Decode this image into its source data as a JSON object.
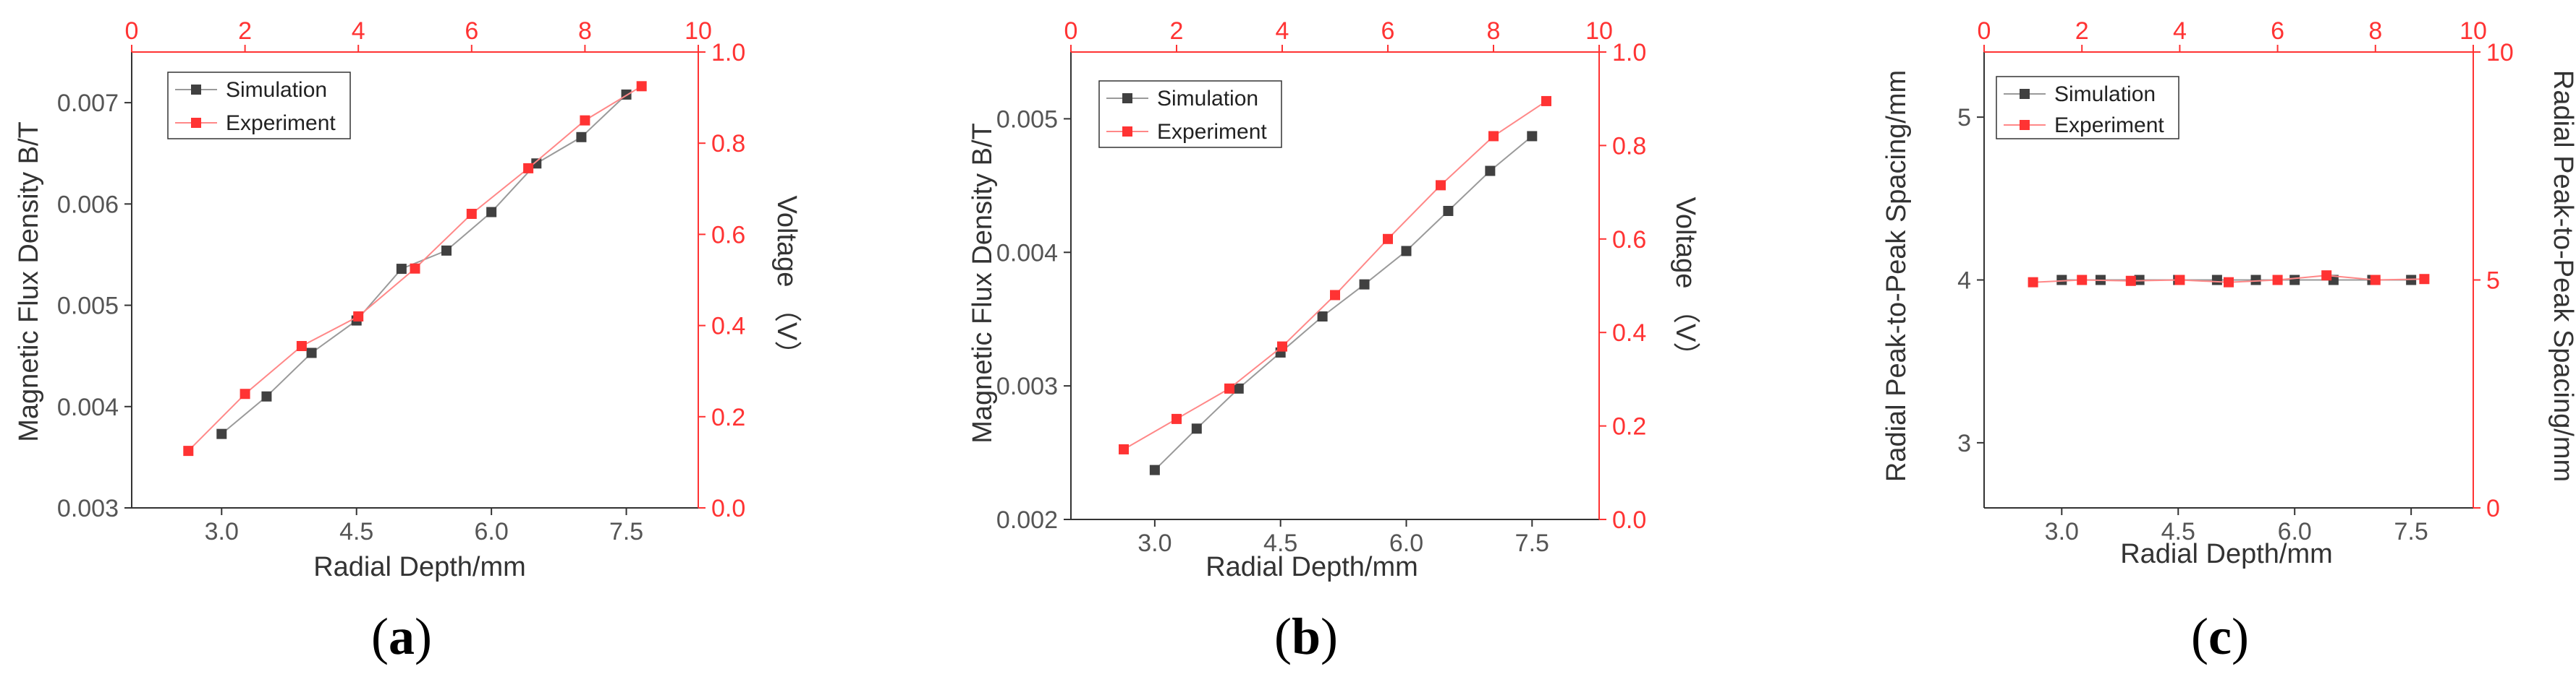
{
  "chart_data": [
    {
      "panel": "a",
      "panel_label": {
        "open": "(",
        "letter": "a",
        "close": ")"
      },
      "type": "line",
      "xlabel": "Radial Depth/mm",
      "ylabel": "Magnetic Flux Density B/T",
      "y2label": "Voltage （V）",
      "xlim": [
        2.0,
        8.3
      ],
      "ylim": [
        0.003,
        0.0075
      ],
      "x2lim": [
        0,
        10
      ],
      "y2lim": [
        0.0,
        1.0
      ],
      "xticks": [
        {
          "v": 3.0,
          "label": "3.0"
        },
        {
          "v": 4.5,
          "label": "4.5"
        },
        {
          "v": 6.0,
          "label": "6.0"
        },
        {
          "v": 7.5,
          "label": "7.5"
        }
      ],
      "yticks": [
        {
          "v": 0.003,
          "label": "0.003"
        },
        {
          "v": 0.004,
          "label": "0.004"
        },
        {
          "v": 0.005,
          "label": "0.005"
        },
        {
          "v": 0.006,
          "label": "0.006"
        },
        {
          "v": 0.007,
          "label": "0.007"
        }
      ],
      "x2ticks": [
        {
          "v": 0,
          "label": "0"
        },
        {
          "v": 2,
          "label": "2"
        },
        {
          "v": 4,
          "label": "4"
        },
        {
          "v": 6,
          "label": "6"
        },
        {
          "v": 8,
          "label": "8"
        },
        {
          "v": 10,
          "label": "10"
        }
      ],
      "y2ticks": [
        {
          "v": 0.0,
          "label": "0.0"
        },
        {
          "v": 0.2,
          "label": "0.2"
        },
        {
          "v": 0.4,
          "label": "0.4"
        },
        {
          "v": 0.6,
          "label": "0.6"
        },
        {
          "v": 0.8,
          "label": "0.8"
        },
        {
          "v": 1.0,
          "label": "1.0"
        }
      ],
      "legend": [
        "Simulation",
        "Experiment"
      ],
      "series": [
        {
          "name": "Simulation",
          "axes": "bottom-left",
          "color": "#404040",
          "x": [
            3.0,
            3.5,
            4.0,
            4.5,
            5.0,
            5.5,
            6.0,
            6.5,
            7.0,
            7.5
          ],
          "y": [
            0.00373,
            0.0041,
            0.00453,
            0.00485,
            0.00536,
            0.00554,
            0.00592,
            0.0064,
            0.00666,
            0.00708
          ]
        },
        {
          "name": "Experiment",
          "axes": "top-right",
          "color": "#ff3333",
          "x": [
            1,
            2,
            3,
            4,
            5,
            6,
            7,
            8,
            9
          ],
          "y": [
            0.125,
            0.25,
            0.355,
            0.42,
            0.525,
            0.645,
            0.745,
            0.85,
            0.925
          ]
        }
      ]
    },
    {
      "panel": "b",
      "panel_label": {
        "open": "(",
        "letter": "b",
        "close": ")"
      },
      "type": "line",
      "xlabel": "Radial Depth/mm",
      "ylabel": "Magnetic Flux Density B/T",
      "y2label": "Voltage （V）",
      "xlim": [
        2.0,
        8.3
      ],
      "ylim": [
        0.002,
        0.0055
      ],
      "x2lim": [
        0,
        10
      ],
      "y2lim": [
        0.0,
        1.0
      ],
      "xticks": [
        {
          "v": 3.0,
          "label": "3.0"
        },
        {
          "v": 4.5,
          "label": "4.5"
        },
        {
          "v": 6.0,
          "label": "6.0"
        },
        {
          "v": 7.5,
          "label": "7.5"
        }
      ],
      "yticks": [
        {
          "v": 0.002,
          "label": "0.002"
        },
        {
          "v": 0.003,
          "label": "0.003"
        },
        {
          "v": 0.004,
          "label": "0.004"
        },
        {
          "v": 0.005,
          "label": "0.005"
        }
      ],
      "x2ticks": [
        {
          "v": 0,
          "label": "0"
        },
        {
          "v": 2,
          "label": "2"
        },
        {
          "v": 4,
          "label": "4"
        },
        {
          "v": 6,
          "label": "6"
        },
        {
          "v": 8,
          "label": "8"
        },
        {
          "v": 10,
          "label": "10"
        }
      ],
      "y2ticks": [
        {
          "v": 0.0,
          "label": "0.0"
        },
        {
          "v": 0.2,
          "label": "0.2"
        },
        {
          "v": 0.4,
          "label": "0.4"
        },
        {
          "v": 0.6,
          "label": "0.6"
        },
        {
          "v": 0.8,
          "label": "0.8"
        },
        {
          "v": 1.0,
          "label": "1.0"
        }
      ],
      "legend": [
        "Simulation",
        "Experiment"
      ],
      "series": [
        {
          "name": "Simulation",
          "axes": "bottom-left",
          "color": "#404040",
          "x": [
            3.0,
            3.5,
            4.0,
            4.5,
            5.0,
            5.5,
            6.0,
            6.5,
            7.0,
            7.5
          ],
          "y": [
            0.00237,
            0.00268,
            0.00298,
            0.00325,
            0.00352,
            0.00376,
            0.00401,
            0.00431,
            0.00461,
            0.00487
          ]
        },
        {
          "name": "Experiment",
          "axes": "top-right",
          "color": "#ff3333",
          "x": [
            1,
            2,
            3,
            4,
            5,
            6,
            7,
            8,
            9
          ],
          "y": [
            0.15,
            0.215,
            0.28,
            0.37,
            0.48,
            0.6,
            0.715,
            0.82,
            0.895
          ]
        }
      ]
    },
    {
      "panel": "c",
      "panel_label": {
        "open": "(",
        "letter": "c",
        "close": ")"
      },
      "type": "line",
      "xlabel": "Radial Depth/mm",
      "ylabel": "Radial Peak-to-Peak Spacing/mm",
      "y2label": "Radial Peak-to-Peak Spacing/mm",
      "xlim": [
        2.0,
        8.3
      ],
      "ylim": [
        2.6,
        5.4
      ],
      "x2lim": [
        0,
        10
      ],
      "y2lim": [
        0,
        10
      ],
      "xticks": [
        {
          "v": 3.0,
          "label": "3.0"
        },
        {
          "v": 4.5,
          "label": "4.5"
        },
        {
          "v": 6.0,
          "label": "6.0"
        },
        {
          "v": 7.5,
          "label": "7.5"
        }
      ],
      "yticks": [
        {
          "v": 3,
          "label": "3"
        },
        {
          "v": 4,
          "label": "4"
        },
        {
          "v": 5,
          "label": "5"
        }
      ],
      "x2ticks": [
        {
          "v": 0,
          "label": "0"
        },
        {
          "v": 2,
          "label": "2"
        },
        {
          "v": 4,
          "label": "4"
        },
        {
          "v": 6,
          "label": "6"
        },
        {
          "v": 8,
          "label": "8"
        },
        {
          "v": 10,
          "label": "10"
        }
      ],
      "y2ticks": [
        {
          "v": 0,
          "label": "0"
        },
        {
          "v": 5,
          "label": "5"
        },
        {
          "v": 10,
          "label": "10"
        }
      ],
      "legend": [
        "Simulation",
        "Experiment"
      ],
      "series": [
        {
          "name": "Simulation",
          "axes": "bottom-left",
          "color": "#404040",
          "x": [
            3.0,
            3.5,
            4.0,
            4.5,
            5.0,
            5.5,
            6.0,
            6.5,
            7.0,
            7.5
          ],
          "y": [
            4.0,
            4.0,
            4.0,
            4.0,
            4.0,
            4.0,
            4.0,
            4.0,
            4.0,
            4.0
          ]
        },
        {
          "name": "Experiment",
          "axes": "top-right",
          "color": "#ff3333",
          "x": [
            1,
            2,
            3,
            4,
            5,
            6,
            7,
            8,
            9
          ],
          "y": [
            4.95,
            5.0,
            4.98,
            5.0,
            4.95,
            5.0,
            5.1,
            5.0,
            5.02
          ]
        }
      ]
    }
  ]
}
